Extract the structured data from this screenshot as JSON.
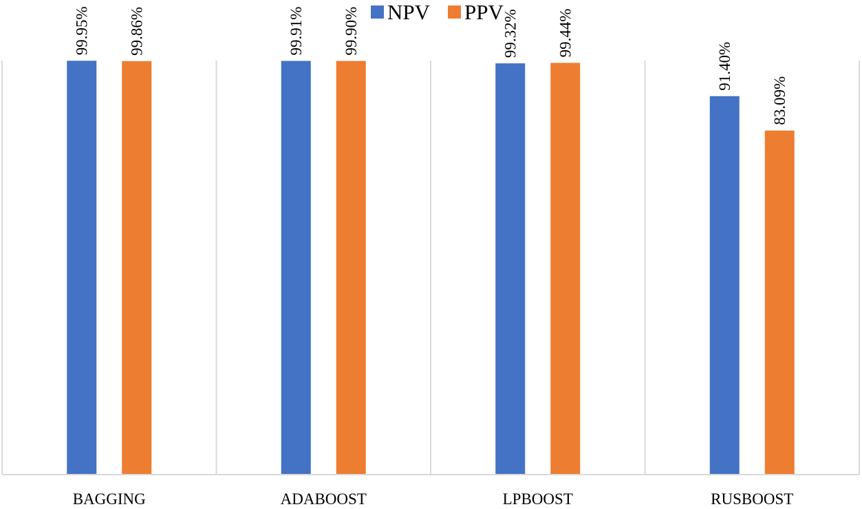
{
  "chart_data": {
    "type": "bar",
    "title": "",
    "xlabel": "",
    "ylabel": "",
    "ylim": [
      0,
      100
    ],
    "categories": [
      "BAGGING",
      "ADABOOST",
      "LPBOOST",
      "RUSBOOST"
    ],
    "series": [
      {
        "name": "NPV",
        "color": "#4472C4",
        "values": [
          99.95,
          99.91,
          99.32,
          91.4
        ],
        "labels": [
          "99.95%",
          "99.91%",
          "99.32%",
          "91.40%"
        ]
      },
      {
        "name": "PPV",
        "color": "#ED7D31",
        "values": [
          99.86,
          99.9,
          99.44,
          83.09
        ],
        "labels": [
          "99.86%",
          "99.90%",
          "99.44%",
          "83.09%"
        ]
      }
    ],
    "legend": "top-center",
    "grid": "vertical category separators"
  }
}
